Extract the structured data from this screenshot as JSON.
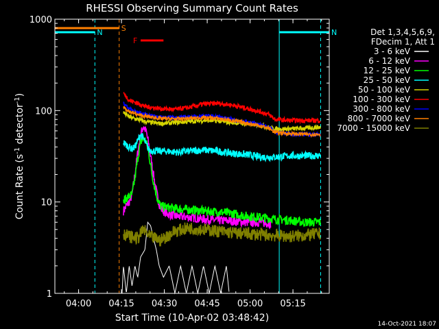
{
  "chart_data": {
    "type": "line",
    "title": "RHESSI Observing Summary Count Rates",
    "xlabel": "Start Time (10-Apr-02 03:48:42)",
    "ylabel_main": "Count Rate (s",
    "ylabel_sup1": "-1",
    "ylabel_mid": " detector",
    "ylabel_sup2": "-1",
    "ylabel_end": ")",
    "x_range_minutes": [
      3.0,
      99.0
    ],
    "x_ticks": [
      {
        "m": 11.3,
        "label": "04:00"
      },
      {
        "m": 26.3,
        "label": "04:15"
      },
      {
        "m": 41.3,
        "label": "04:30"
      },
      {
        "m": 56.3,
        "label": "04:45"
      },
      {
        "m": 71.3,
        "label": "05:00"
      },
      {
        "m": 86.3,
        "label": "05:15"
      }
    ],
    "y_scale": "log",
    "y_range": [
      1,
      1000
    ],
    "y_ticks": [
      {
        "v": 1,
        "label": "1"
      },
      {
        "v": 10,
        "label": "10"
      },
      {
        "v": 100,
        "label": "100"
      },
      {
        "v": 1000,
        "label": "1000"
      }
    ],
    "legend_header": [
      "Det 1,3,4,5,6,9,",
      "FDecim 1, Att 1"
    ],
    "legend": [
      {
        "name": "3 - 6 keV",
        "color": "#ffffff"
      },
      {
        "name": "6 - 12 keV",
        "color": "#ff00ff"
      },
      {
        "name": "12 - 25 keV",
        "color": "#00ff00"
      },
      {
        "name": "25 - 50 keV",
        "color": "#00ffff"
      },
      {
        "name": "50 - 100 keV",
        "color": "#d4d400"
      },
      {
        "name": "100 - 300 keV",
        "color": "#ff0000"
      },
      {
        "name": "300 - 800 keV",
        "color": "#0000ff"
      },
      {
        "name": "800 - 7000 keV",
        "color": "#ff8000"
      },
      {
        "name": "7000 - 15000 keV",
        "color": "#808000"
      }
    ],
    "series": [
      {
        "name": "3 - 6 keV",
        "color": "#ffffff",
        "noise": 0.0,
        "points": [
          [
            26.5,
            1.0
          ],
          [
            27.0,
            2.0
          ],
          [
            28.0,
            1.0
          ],
          [
            29.0,
            2.0
          ],
          [
            30.0,
            1.2
          ],
          [
            31.0,
            2.0
          ],
          [
            32.0,
            1.5
          ],
          [
            33.0,
            2.5
          ],
          [
            34.5,
            3.0
          ],
          [
            35.5,
            6.0
          ],
          [
            36.5,
            5.5
          ],
          [
            37.5,
            4.0
          ],
          [
            38.5,
            3.0
          ],
          [
            39.5,
            2.0
          ],
          [
            41.0,
            1.5
          ],
          [
            43.0,
            2.0
          ],
          [
            45.0,
            1.0
          ],
          [
            47.0,
            2.0
          ],
          [
            49.0,
            1.0
          ],
          [
            51.0,
            2.0
          ],
          [
            53.0,
            1.0
          ],
          [
            55.0,
            2.0
          ],
          [
            57.0,
            1.0
          ],
          [
            59.0,
            2.0
          ],
          [
            61.0,
            1.0
          ],
          [
            63.0,
            2.0
          ],
          [
            64.0,
            1.0
          ]
        ]
      },
      {
        "name": "6 - 12 keV",
        "color": "#ff00ff",
        "noise": 0.05,
        "points": [
          [
            27.0,
            8.0
          ],
          [
            28.0,
            9.0
          ],
          [
            29.0,
            10.0
          ],
          [
            30.0,
            12.0
          ],
          [
            31.0,
            20.0
          ],
          [
            32.0,
            35.0
          ],
          [
            33.0,
            55.0
          ],
          [
            34.0,
            68.0
          ],
          [
            35.0,
            58.0
          ],
          [
            36.0,
            40.0
          ],
          [
            37.0,
            25.0
          ],
          [
            38.0,
            16.0
          ],
          [
            39.0,
            11.0
          ],
          [
            40.0,
            8.5
          ],
          [
            42.0,
            7.5
          ],
          [
            45.0,
            7.0
          ],
          [
            50.0,
            6.8
          ],
          [
            55.0,
            6.5
          ],
          [
            60.0,
            6.3
          ],
          [
            65.0,
            6.2
          ],
          [
            70.0,
            6.0
          ],
          [
            75.0,
            6.0
          ],
          [
            78.5,
            5.8
          ]
        ]
      },
      {
        "name": "12 - 25 keV",
        "color": "#00ff00",
        "noise": 0.05,
        "points": [
          [
            27.0,
            10.0
          ],
          [
            28.0,
            11.0
          ],
          [
            29.0,
            11.5
          ],
          [
            30.0,
            12.0
          ],
          [
            31.0,
            18.0
          ],
          [
            32.0,
            30.0
          ],
          [
            33.0,
            45.0
          ],
          [
            34.0,
            50.0
          ],
          [
            35.0,
            45.0
          ],
          [
            36.0,
            32.0
          ],
          [
            37.0,
            20.0
          ],
          [
            38.0,
            14.0
          ],
          [
            39.0,
            10.5
          ],
          [
            40.0,
            9.0
          ],
          [
            45.0,
            8.5
          ],
          [
            50.0,
            8.2
          ],
          [
            55.0,
            8.0
          ],
          [
            60.0,
            7.8
          ],
          [
            65.0,
            7.5
          ],
          [
            70.0,
            7.0
          ],
          [
            75.0,
            6.8
          ],
          [
            80.0,
            6.5
          ],
          [
            85.0,
            6.3
          ],
          [
            90.0,
            6.0
          ],
          [
            96.0,
            6.0
          ]
        ]
      },
      {
        "name": "25 - 50 keV",
        "color": "#00ffff",
        "noise": 0.04,
        "points": [
          [
            27.0,
            45.0
          ],
          [
            28.0,
            42.0
          ],
          [
            29.0,
            40.0
          ],
          [
            30.0,
            38.0
          ],
          [
            31.0,
            40.0
          ],
          [
            32.0,
            47.0
          ],
          [
            33.0,
            55.0
          ],
          [
            34.0,
            50.0
          ],
          [
            35.0,
            42.0
          ],
          [
            36.0,
            37.0
          ],
          [
            38.0,
            36.0
          ],
          [
            42.0,
            36.0
          ],
          [
            46.0,
            35.0
          ],
          [
            50.0,
            36.0
          ],
          [
            55.0,
            37.0
          ],
          [
            60.0,
            36.0
          ],
          [
            65.0,
            34.0
          ],
          [
            70.0,
            33.0
          ],
          [
            75.0,
            31.0
          ],
          [
            80.0,
            31.0
          ],
          [
            85.0,
            32.0
          ],
          [
            90.0,
            32.0
          ],
          [
            95.0,
            32.0
          ],
          [
            96.0,
            33.0
          ]
        ]
      },
      {
        "name": "50 - 100 keV",
        "color": "#d4d400",
        "noise": 0.025,
        "points": [
          [
            27.0,
            95.0
          ],
          [
            29.0,
            85.0
          ],
          [
            32.0,
            80.0
          ],
          [
            35.0,
            75.0
          ],
          [
            40.0,
            72.0
          ],
          [
            45.0,
            74.0
          ],
          [
            50.0,
            76.0
          ],
          [
            55.0,
            78.0
          ],
          [
            60.0,
            77.0
          ],
          [
            65.0,
            74.0
          ],
          [
            70.0,
            72.0
          ],
          [
            75.0,
            69.0
          ],
          [
            78.0,
            65.0
          ],
          [
            80.0,
            63.0
          ],
          [
            85.0,
            63.0
          ],
          [
            90.0,
            64.0
          ],
          [
            96.0,
            66.0
          ]
        ]
      },
      {
        "name": "100 - 300 keV",
        "color": "#ff0000",
        "noise": 0.025,
        "points": [
          [
            27.0,
            155.0
          ],
          [
            29.0,
            130.0
          ],
          [
            32.0,
            120.0
          ],
          [
            35.0,
            110.0
          ],
          [
            40.0,
            105.0
          ],
          [
            45.0,
            103.0
          ],
          [
            50.0,
            108.0
          ],
          [
            55.0,
            118.0
          ],
          [
            60.0,
            120.0
          ],
          [
            65.0,
            115.0
          ],
          [
            70.0,
            106.0
          ],
          [
            75.0,
            97.0
          ],
          [
            78.0,
            90.0
          ],
          [
            80.0,
            80.0
          ],
          [
            85.0,
            78.0
          ],
          [
            90.0,
            78.0
          ],
          [
            96.0,
            78.0
          ]
        ]
      },
      {
        "name": "300 - 800 keV",
        "color": "#0000ff",
        "noise": 0.02,
        "points": [
          [
            27.0,
            120.0
          ],
          [
            29.0,
            105.0
          ],
          [
            32.0,
            95.0
          ],
          [
            35.0,
            90.0
          ],
          [
            40.0,
            85.0
          ],
          [
            45.0,
            84.0
          ],
          [
            50.0,
            85.0
          ],
          [
            55.0,
            88.0
          ],
          [
            60.0,
            86.0
          ],
          [
            65.0,
            80.0
          ],
          [
            70.0,
            75.0
          ],
          [
            75.0,
            70.0
          ],
          [
            78.0,
            66.0
          ],
          [
            80.0,
            58.0
          ],
          [
            85.0,
            56.0
          ],
          [
            90.0,
            55.0
          ],
          [
            96.0,
            54.0
          ]
        ]
      },
      {
        "name": "800 - 7000 keV",
        "color": "#ff8000",
        "noise": 0.02,
        "points": [
          [
            27.0,
            110.0
          ],
          [
            29.0,
            98.0
          ],
          [
            32.0,
            90.0
          ],
          [
            35.0,
            86.0
          ],
          [
            40.0,
            82.0
          ],
          [
            45.0,
            81.0
          ],
          [
            50.0,
            82.0
          ],
          [
            55.0,
            84.0
          ],
          [
            60.0,
            82.0
          ],
          [
            65.0,
            78.0
          ],
          [
            70.0,
            73.0
          ],
          [
            75.0,
            68.0
          ],
          [
            78.0,
            64.0
          ],
          [
            80.0,
            58.0
          ],
          [
            85.0,
            56.0
          ],
          [
            90.0,
            55.0
          ],
          [
            96.0,
            55.0
          ]
        ]
      },
      {
        "name": "7000 - 15000 keV",
        "color": "#808000",
        "noise": 0.07,
        "points": [
          [
            27.0,
            4.5
          ],
          [
            29.0,
            4.2
          ],
          [
            32.0,
            4.0
          ],
          [
            34.0,
            5.0
          ],
          [
            36.0,
            4.2
          ],
          [
            40.0,
            3.8
          ],
          [
            45.0,
            4.8
          ],
          [
            50.0,
            5.2
          ],
          [
            55.0,
            5.0
          ],
          [
            60.0,
            4.8
          ],
          [
            65.0,
            4.6
          ],
          [
            70.0,
            4.5
          ],
          [
            75.0,
            4.4
          ],
          [
            80.0,
            4.3
          ],
          [
            85.0,
            4.2
          ],
          [
            90.0,
            4.3
          ],
          [
            96.0,
            4.5
          ]
        ]
      }
    ],
    "flags": [
      {
        "label": "S",
        "color": "#ff8000",
        "start": 3.0,
        "end": 25.5
      },
      {
        "label": "N",
        "color": "#00ffff",
        "start": 3.0,
        "end": 17.0
      },
      {
        "label": "N",
        "color": "#00ffff",
        "start": 81.5,
        "end": 99.0
      },
      {
        "label": "F",
        "color": "#ff0000",
        "start": 33.0,
        "end": 41.0
      }
    ],
    "vlines": [
      {
        "m": 3.0,
        "color": "#00ffff",
        "dash": false
      },
      {
        "m": 17.0,
        "color": "#00ffff",
        "dash": true
      },
      {
        "m": 25.5,
        "color": "#ff8000",
        "dash": true
      },
      {
        "m": 81.5,
        "color": "#00ffff",
        "dash": false
      },
      {
        "m": 96.0,
        "color": "#00ffff",
        "dash": true
      }
    ],
    "timestamp": "14-Oct-2021 18:07"
  }
}
